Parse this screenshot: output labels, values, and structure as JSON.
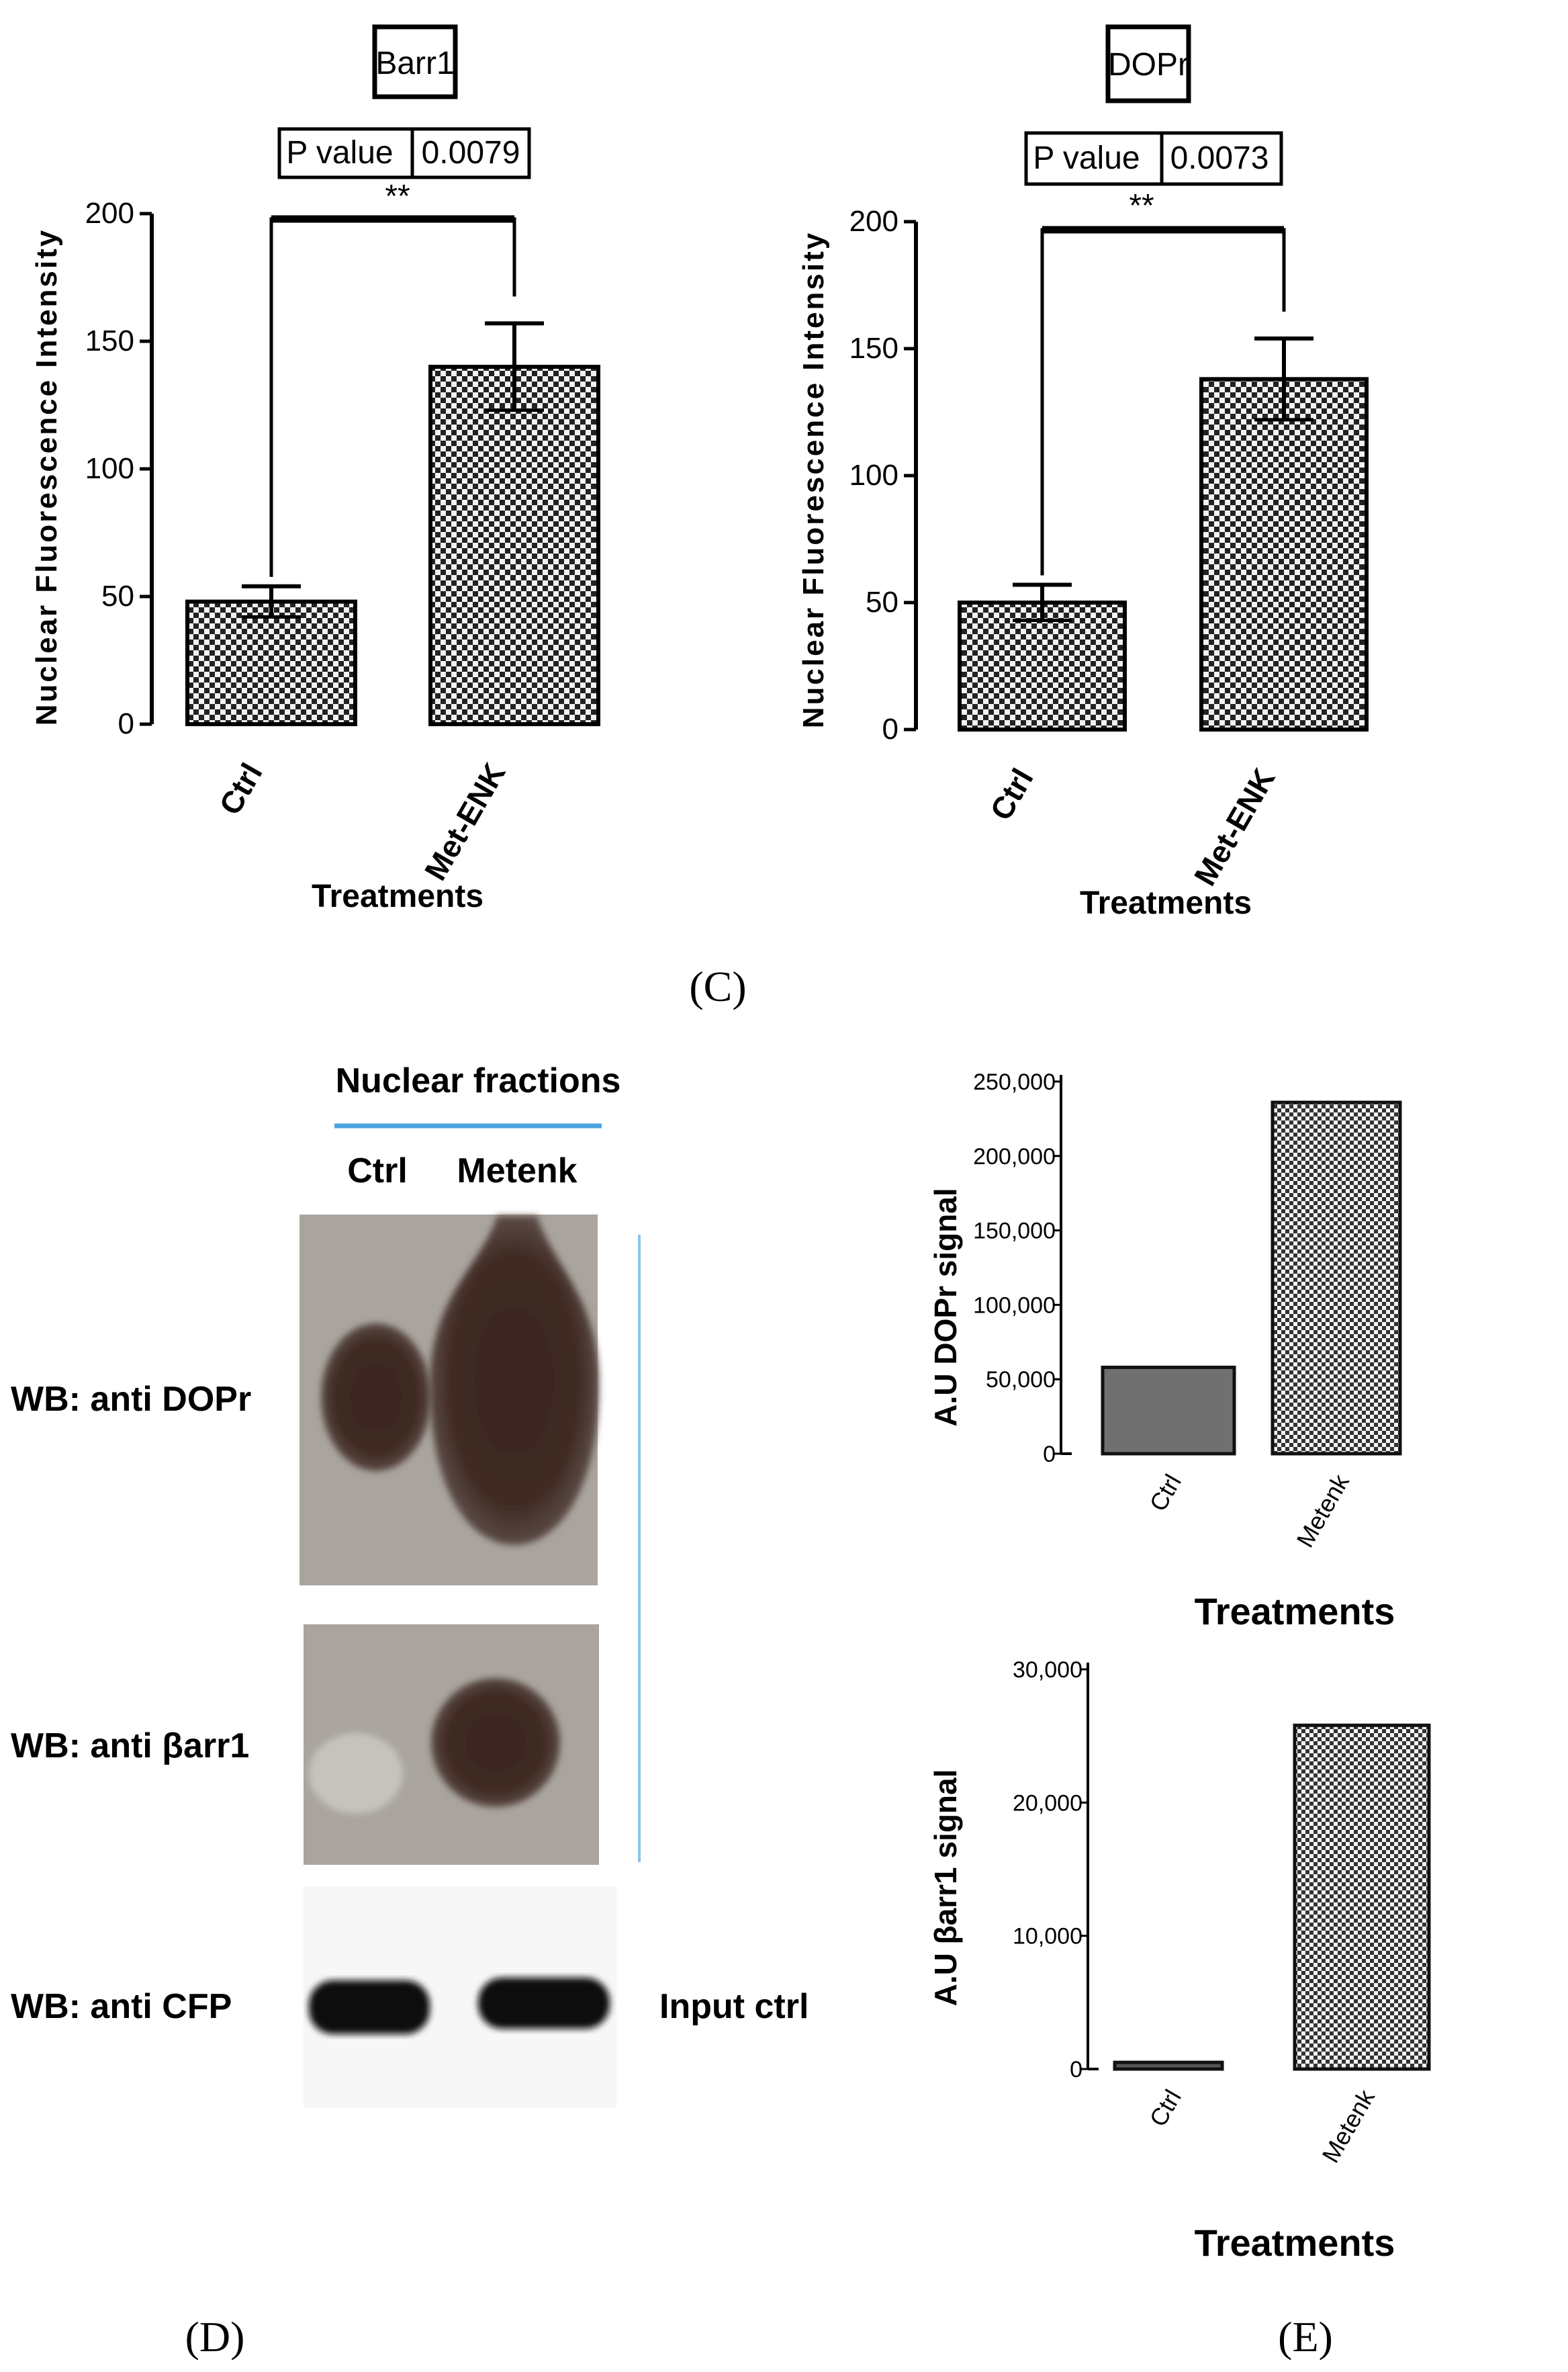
{
  "colors": {
    "bar_fill_dark": "#333333",
    "bar_fill_light": "#eeeeee",
    "blot_bg": "#aaa49f",
    "band": "#3a2a24",
    "accent_line": "#4aa3df"
  },
  "panel_c": {
    "label": "(C)",
    "ylabel": "Nuclear Fluorescence Intensity",
    "xlabel": "Treatments"
  },
  "panel_d": {
    "label": "(D)",
    "header": "Nuclear fractions",
    "lane_labels": [
      "Ctrl",
      "Metenk"
    ],
    "rows": [
      "WB: anti DOPr",
      "WB: anti βarr1",
      "WB: anti CFP"
    ],
    "input_label": "Input ctrl"
  },
  "panel_e": {
    "label": "(E)"
  },
  "chart_data": [
    {
      "type": "bar",
      "title": "Barr1",
      "pvalue_label": "P value",
      "pvalue": "0.0079",
      "significance": "**",
      "categories": [
        "Ctrl",
        "Met-ENK"
      ],
      "values": [
        48,
        140
      ],
      "errors": [
        6,
        17
      ],
      "ylim": [
        0,
        200
      ],
      "yticks": [
        0,
        50,
        100,
        150,
        200
      ],
      "ylabel": "Nuclear Fluorescence Intensity",
      "xlabel": "Treatments"
    },
    {
      "type": "bar",
      "title": "DOPr",
      "pvalue_label": "P value",
      "pvalue": "0.0073",
      "significance": "**",
      "categories": [
        "Ctrl",
        "Met-ENK"
      ],
      "values": [
        50,
        138
      ],
      "errors": [
        7,
        16
      ],
      "ylim": [
        0,
        200
      ],
      "yticks": [
        0,
        50,
        100,
        150,
        200
      ],
      "ylabel": "Nuclear Fluorescence Intensity",
      "xlabel": "Treatments"
    },
    {
      "type": "bar",
      "title": "",
      "categories": [
        "Ctrl",
        "Metenk"
      ],
      "values": [
        58000,
        236000
      ],
      "ylim": [
        0,
        250000
      ],
      "yticks": [
        0,
        50000,
        100000,
        150000,
        200000,
        250000
      ],
      "ytick_labels": [
        "0",
        "50,000",
        "100,000",
        "150,000",
        "200,000",
        "250,000"
      ],
      "ylabel": "A.U DOPr signal",
      "xlabel": "Treatments"
    },
    {
      "type": "bar",
      "title": "",
      "categories": [
        "Ctrl",
        "Metenk"
      ],
      "values": [
        500,
        25800
      ],
      "ylim": [
        0,
        30000
      ],
      "yticks": [
        0,
        10000,
        20000,
        30000
      ],
      "ytick_labels": [
        "0",
        "10,000",
        "20,000",
        "30,000"
      ],
      "ylabel": "A.U βarr1 signal",
      "xlabel": "Treatments"
    }
  ]
}
